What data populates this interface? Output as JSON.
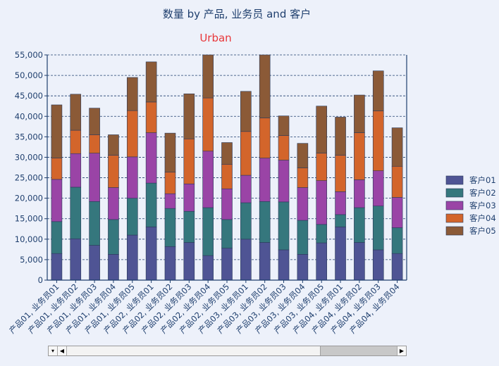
{
  "chart_data": {
    "type": "bar",
    "stacked": true,
    "title": "数量 by 产品, 业务员 and 客户",
    "subtitle": "Urban",
    "categories": [
      "产品01, 业务员01",
      "产品01, 业务员02",
      "产品01, 业务员03",
      "产品01, 业务员04",
      "产品01, 业务员05",
      "产品02, 业务员01",
      "产品02, 业务员02",
      "产品02, 业务员03",
      "产品02, 业务员04",
      "产品02, 业务员05",
      "产品03, 业务员01",
      "产品03, 业务员02",
      "产品03, 业务员03",
      "产品03, 业务员04",
      "产品03, 业务员05",
      "产品04, 业务员01",
      "产品04, 业务员02",
      "产品04, 业务员03",
      "产品04, 业务员04"
    ],
    "series": [
      {
        "name": "客户01",
        "color": "#4f5494",
        "values": [
          6500,
          10100,
          8500,
          6300,
          11000,
          13000,
          8200,
          9200,
          6000,
          7800,
          10000,
          9200,
          7400,
          6300,
          9100,
          13000,
          9200,
          7400,
          6500
        ]
      },
      {
        "name": "客户02",
        "color": "#35777d",
        "values": [
          7800,
          12600,
          10700,
          8500,
          9000,
          10700,
          9300,
          7600,
          11700,
          7000,
          8900,
          10000,
          11700,
          8300,
          4500,
          3000,
          8500,
          10700,
          6300
        ]
      },
      {
        "name": "客户03",
        "color": "#9a44a6",
        "values": [
          10300,
          8200,
          11800,
          7800,
          10100,
          12300,
          3600,
          6700,
          13800,
          7500,
          6700,
          10600,
          10200,
          8000,
          10700,
          5600,
          6800,
          8600,
          7400
        ]
      },
      {
        "name": "客户04",
        "color": "#d3652b",
        "values": [
          5200,
          5700,
          4500,
          7900,
          11300,
          7500,
          5300,
          11000,
          13000,
          6000,
          10700,
          9800,
          6000,
          4800,
          6700,
          8900,
          11500,
          14600,
          7600
        ]
      },
      {
        "name": "客户05",
        "color": "#8b5a37",
        "values": [
          13000,
          8800,
          6500,
          5000,
          8100,
          9800,
          9500,
          11000,
          10500,
          5300,
          9800,
          15400,
          4800,
          6000,
          11500,
          9300,
          9200,
          9800,
          9400
        ]
      }
    ],
    "ylim": [
      0,
      55000
    ],
    "yticks": [
      "0",
      "5,000",
      "10,000",
      "15,000",
      "20,000",
      "25,000",
      "30,000",
      "35,000",
      "40,000",
      "45,000",
      "50,000",
      "55,000"
    ],
    "grid": true,
    "legend_position": "right"
  }
}
